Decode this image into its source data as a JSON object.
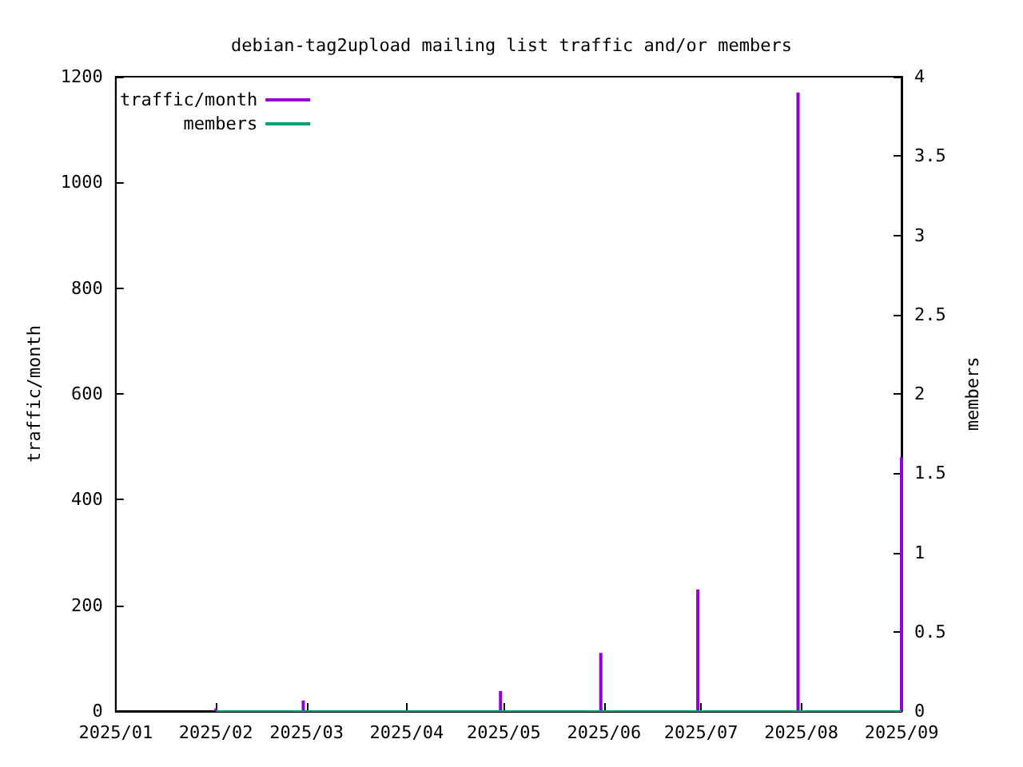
{
  "chart_data": {
    "type": "bar",
    "title": "debian-tag2upload mailing list traffic and/or members",
    "ylabel": "traffic/month",
    "y2label": "members",
    "x": [
      "2025-02-01",
      "2025-02-28",
      "2025-04-30",
      "2025-05-31",
      "2025-06-30",
      "2025-07-31",
      "2025-09-01"
    ],
    "series": [
      {
        "name": "traffic/month",
        "color": "#9400d3",
        "values": [
          5,
          20,
          38,
          110,
          230,
          1170,
          480
        ]
      },
      {
        "name": "members",
        "type": "line",
        "color": "#009e73",
        "values": [
          0,
          0,
          0,
          0,
          0,
          0,
          0
        ]
      }
    ],
    "xlim": [
      "2025-01-01",
      "2025-09-01"
    ],
    "xticks": [
      {
        "value": "2025-01-01",
        "label": "2025/01"
      },
      {
        "value": "2025-02-01",
        "label": "2025/02"
      },
      {
        "value": "2025-03-01",
        "label": "2025/03"
      },
      {
        "value": "2025-04-01",
        "label": "2025/04"
      },
      {
        "value": "2025-05-01",
        "label": "2025/05"
      },
      {
        "value": "2025-06-01",
        "label": "2025/06"
      },
      {
        "value": "2025-07-01",
        "label": "2025/07"
      },
      {
        "value": "2025-08-01",
        "label": "2025/08"
      },
      {
        "value": "2025-09-01",
        "label": "2025/09"
      }
    ],
    "ylim": [
      0,
      1200
    ],
    "yticks": [
      0,
      200,
      400,
      600,
      800,
      1000,
      1200
    ],
    "y2lim": [
      0,
      4
    ],
    "y2ticks": [
      0,
      0.5,
      1,
      1.5,
      2,
      2.5,
      3,
      3.5,
      4
    ],
    "grid": false,
    "legend": "top left",
    "marker": "none"
  }
}
